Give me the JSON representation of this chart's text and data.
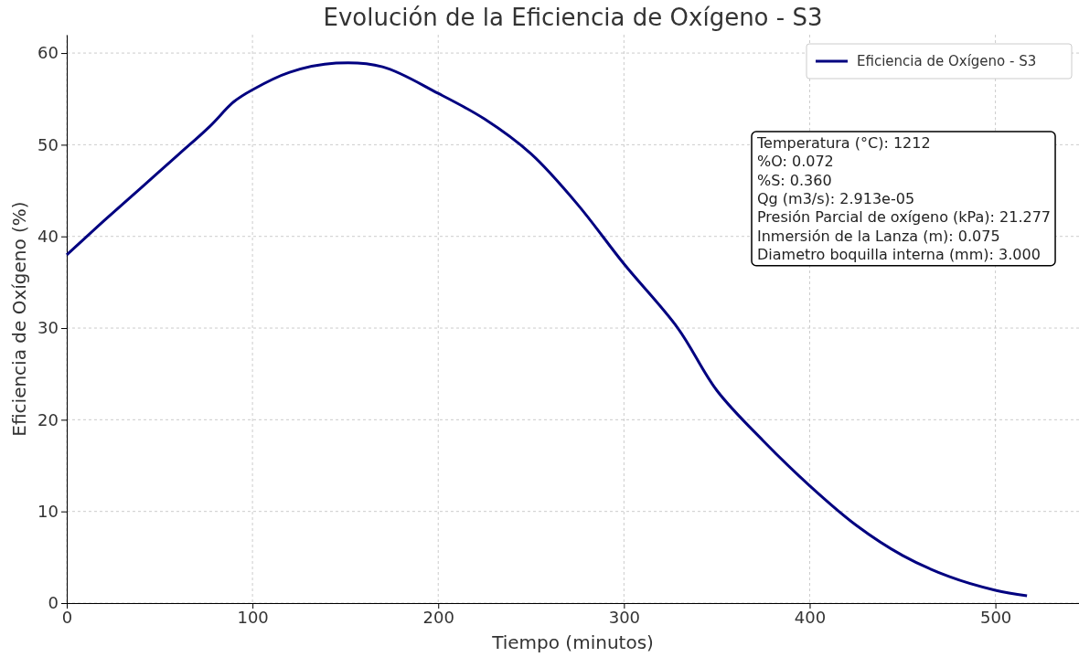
{
  "chart_data": {
    "type": "line",
    "title": "Evolución de la Eficiencia de Oxígeno - S3",
    "xlabel": "Tiempo (minutos)",
    "ylabel": "Eficiencia de Oxígeno (%)",
    "x": [
      0,
      20,
      40,
      60,
      77,
      90,
      100,
      120,
      145,
      170,
      200,
      225,
      250,
      275,
      300,
      329,
      350,
      375,
      400,
      425,
      450,
      475,
      500,
      517
    ],
    "series": [
      {
        "name": "Eficiencia de Oxígeno - S3",
        "color": "#000080",
        "values": [
          38,
          41.7,
          45.3,
          48.9,
          52,
          54.7,
          56,
          57.9,
          58.9,
          58.5,
          55.6,
          52.8,
          49,
          43.5,
          37,
          30,
          23.2,
          17.7,
          12.8,
          8.5,
          5.2,
          2.9,
          1.4,
          0.8
        ]
      }
    ],
    "xlim": [
      0,
      545
    ],
    "xticks": [
      0,
      100,
      200,
      300,
      400,
      500
    ],
    "ylim": [
      0,
      62
    ],
    "yticks": [
      0,
      10,
      20,
      30,
      40,
      50,
      60
    ],
    "grid": true,
    "legend": "top right",
    "marker": "none",
    "line_style": "solid",
    "annotations": [
      "Temperatura (°C): 1212\n%O: 0.072\n%S: 0.360\nQg (m3/s): 2.913e-05\nPresión Parcial de oxígeno (kPa): 21.277\nInmersión de la Lanza (m): 0.075\nDiametro boquilla interna (mm): 3.000"
    ]
  }
}
